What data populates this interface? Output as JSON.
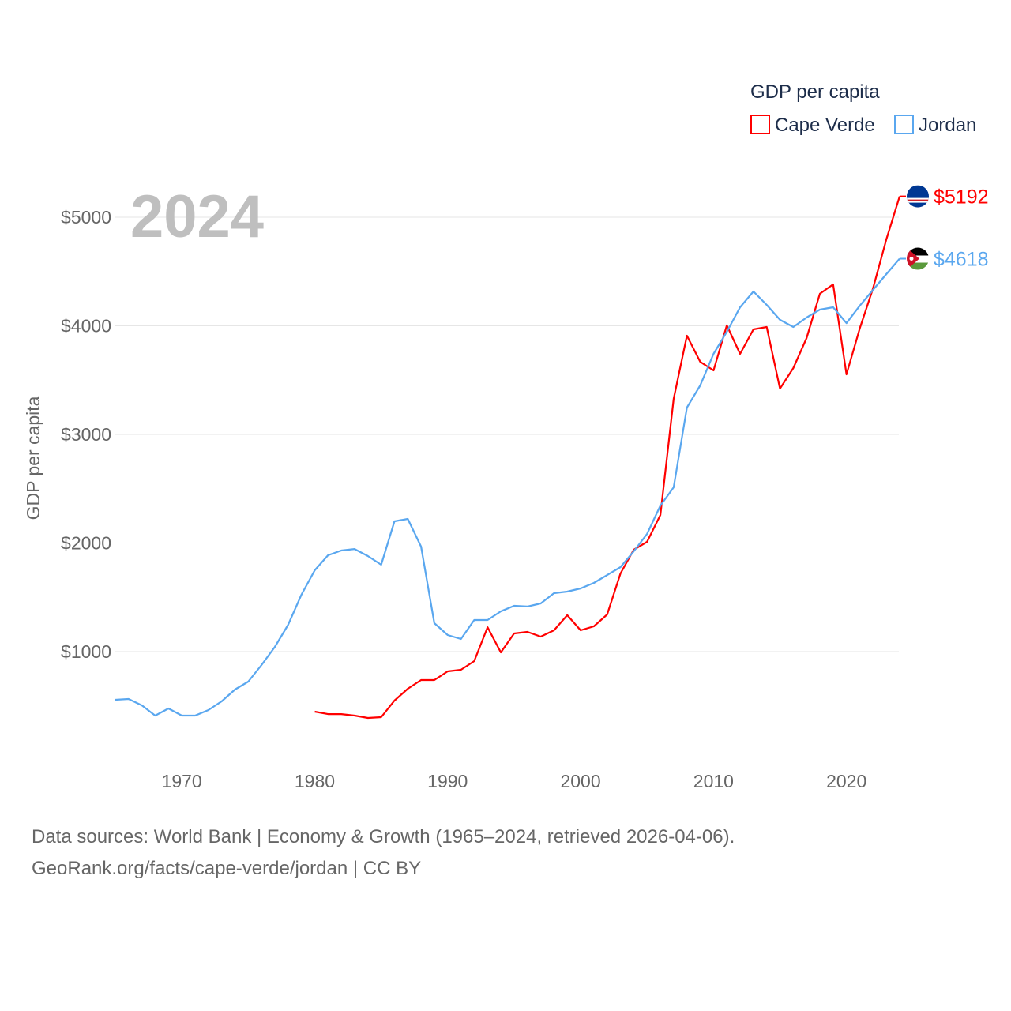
{
  "chart_data": {
    "type": "line",
    "title_year": "2024",
    "ylabel": "GDP per capita",
    "legend_title": "GDP per capita",
    "legend_position": "top-right",
    "xlim": [
      1965,
      2024
    ],
    "ylim": [
      0,
      5500
    ],
    "yticks": [
      1000,
      2000,
      3000,
      4000,
      5000
    ],
    "ytick_labels": [
      "$1000",
      "$2000",
      "$3000",
      "$4000",
      "$5000"
    ],
    "xticks": [
      1970,
      1980,
      1990,
      2000,
      2010,
      2020
    ],
    "xtick_labels": [
      "1970",
      "1980",
      "1990",
      "2000",
      "2010",
      "2020"
    ],
    "grid": true,
    "series": [
      {
        "name": "Cape Verde",
        "color": "#ff0000",
        "end_label": "$5192",
        "flag": "cape-verde-flag",
        "x": [
          1980,
          1981,
          1982,
          1983,
          1984,
          1985,
          1986,
          1987,
          1988,
          1989,
          1990,
          1991,
          1992,
          1993,
          1994,
          1995,
          1996,
          1997,
          1998,
          1999,
          2000,
          2001,
          2002,
          2003,
          2004,
          2005,
          2006,
          2007,
          2008,
          2009,
          2010,
          2011,
          2012,
          2013,
          2014,
          2015,
          2016,
          2017,
          2018,
          2019,
          2020,
          2021,
          2022,
          2023,
          2024
        ],
        "values": [
          447,
          425,
          425,
          411,
          389,
          396,
          549,
          658,
          738,
          738,
          818,
          833,
          913,
          1225,
          993,
          1167,
          1182,
          1138,
          1196,
          1335,
          1196,
          1233,
          1342,
          1720,
          1938,
          2011,
          2258,
          3327,
          3909,
          3669,
          3589,
          4004,
          3742,
          3967,
          3989,
          3422,
          3611,
          3887,
          4295,
          4382,
          3553,
          3975,
          4345,
          4796,
          5192
        ]
      },
      {
        "name": "Jordan",
        "color": "#5aa7ef",
        "end_label": "$4618",
        "flag": "jordan-flag",
        "x": [
          1965,
          1966,
          1967,
          1968,
          1969,
          1970,
          1971,
          1972,
          1973,
          1974,
          1975,
          1976,
          1977,
          1978,
          1979,
          1980,
          1981,
          1982,
          1983,
          1984,
          1985,
          1986,
          1987,
          1988,
          1989,
          1990,
          1991,
          1992,
          1993,
          1994,
          1995,
          1996,
          1997,
          1998,
          1999,
          2000,
          2001,
          2002,
          2003,
          2004,
          2005,
          2006,
          2007,
          2008,
          2009,
          2010,
          2011,
          2012,
          2013,
          2014,
          2015,
          2016,
          2017,
          2018,
          2019,
          2020,
          2021,
          2022,
          2023,
          2024
        ],
        "values": [
          556,
          564,
          505,
          411,
          476,
          411,
          411,
          462,
          542,
          651,
          724,
          876,
          1044,
          1247,
          1524,
          1749,
          1887,
          1931,
          1945,
          1880,
          1800,
          2200,
          2222,
          1967,
          1262,
          1153,
          1116,
          1291,
          1291,
          1371,
          1422,
          1415,
          1444,
          1538,
          1553,
          1582,
          1633,
          1705,
          1778,
          1924,
          2084,
          2345,
          2513,
          3247,
          3451,
          3742,
          3945,
          4171,
          4316,
          4193,
          4055,
          3989,
          4076,
          4149,
          4171,
          4025,
          4185,
          4331,
          4476,
          4618
        ]
      }
    ]
  },
  "footer": {
    "line1": "Data sources: World Bank | Economy & Growth (1965–2024, retrieved 2026-04-06).",
    "line2": "GeoRank.org/facts/cape-verde/jordan | CC BY"
  }
}
